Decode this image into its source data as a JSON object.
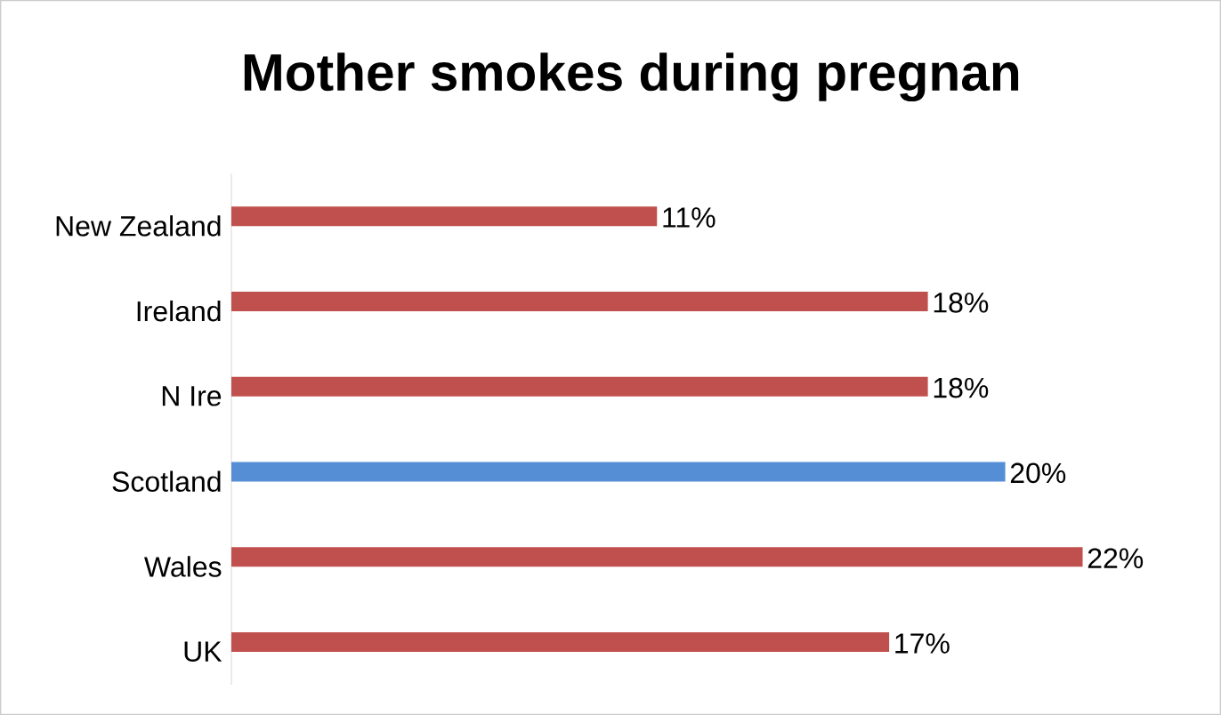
{
  "chart_data": {
    "type": "bar",
    "orientation": "horizontal",
    "title": "Mother smokes during pregnan",
    "categories": [
      "New Zealand",
      "Ireland",
      "N Ire",
      "Scotland",
      "Wales",
      "UK"
    ],
    "values": [
      11,
      18,
      18,
      20,
      22,
      17
    ],
    "colors": [
      "#c0504d",
      "#c0504d",
      "#c0504d",
      "#558ed5",
      "#c0504d",
      "#c0504d"
    ],
    "value_labels": [
      "11%",
      "18%",
      "18%",
      "20%",
      "22%",
      "17%"
    ]
  }
}
